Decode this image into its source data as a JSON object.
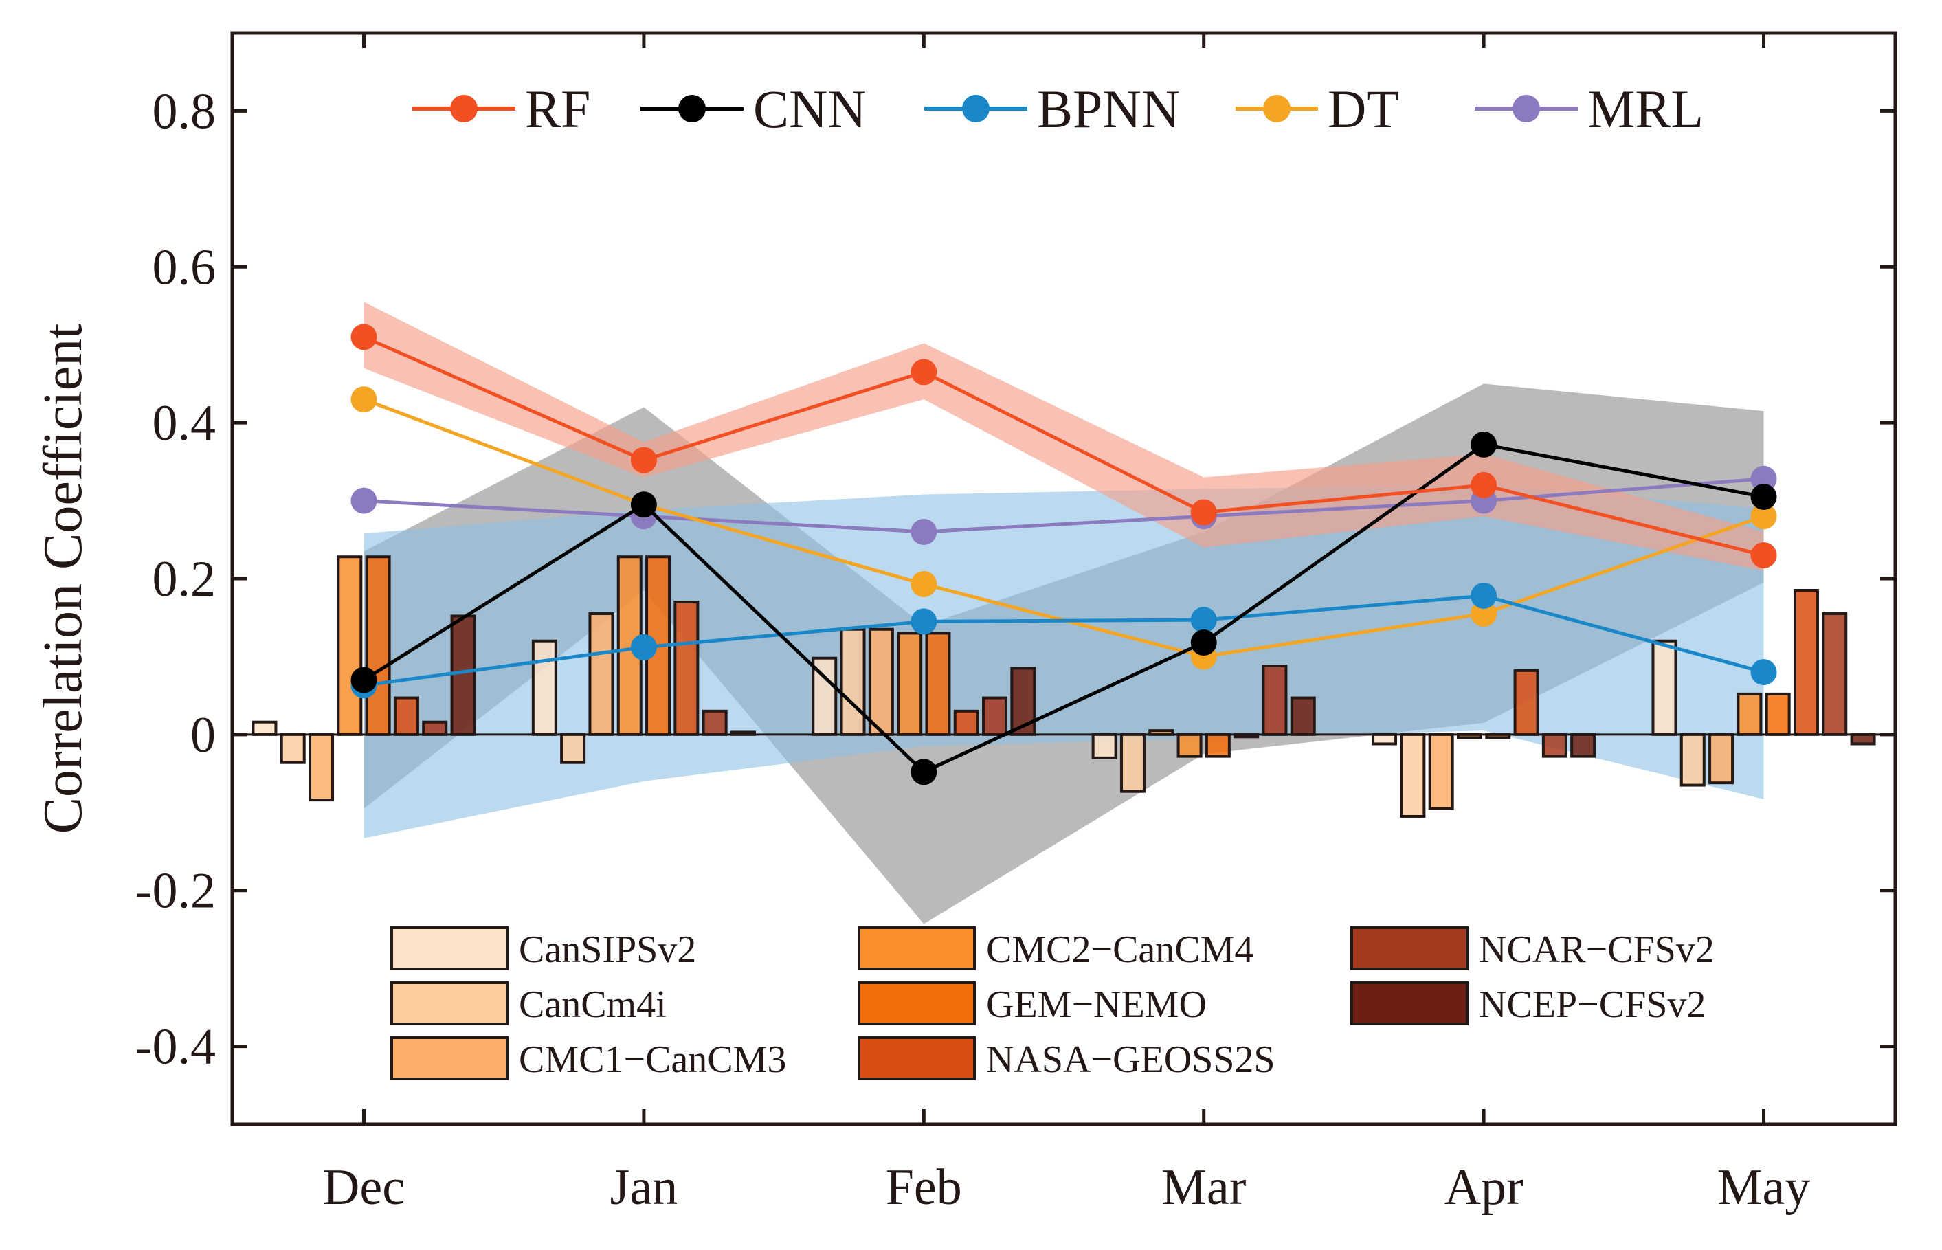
{
  "chart_data": {
    "type": "bar+line",
    "ylabel": "Correlation Coefficient",
    "xlabel": "",
    "ylim": [
      -0.5,
      0.9
    ],
    "yticks": [
      -0.4,
      -0.2,
      0,
      0.2,
      0.4,
      0.6,
      0.8
    ],
    "ytick_labels": [
      "-0.4",
      "-0.2",
      "0",
      "0.2",
      "0.4",
      "0.6",
      "0.8"
    ],
    "categories": [
      "Dec",
      "Jan",
      "Feb",
      "Mar",
      "Apr",
      "May"
    ],
    "x_range": [
      -0.47,
      5.47
    ],
    "bar_series": [
      {
        "name": "CanSIPSv2",
        "color": "#FDE3C8",
        "values": [
          0.016,
          0.12,
          0.098,
          -0.03,
          -0.012,
          0.12
        ]
      },
      {
        "name": "CanCm4i",
        "color": "#FDCDA0",
        "values": [
          -0.036,
          -0.036,
          0.135,
          -0.073,
          -0.105,
          -0.065
        ]
      },
      {
        "name": "CMC1-CanCM3",
        "color": "#FDAE6B",
        "values": [
          -0.084,
          0.155,
          0.135,
          0.005,
          -0.095,
          -0.062
        ]
      },
      {
        "name": "CMC2-CanCM4",
        "color": "#F98E2D",
        "values": [
          0.228,
          0.228,
          0.13,
          -0.028,
          -0.004,
          0.052
        ]
      },
      {
        "name": "GEM-NEMO",
        "color": "#F36C0A",
        "values": [
          0.228,
          0.228,
          0.13,
          -0.028,
          -0.004,
          0.052
        ]
      },
      {
        "name": "NASA-GEOSS2S",
        "color": "#D94F12",
        "values": [
          0.047,
          0.17,
          0.03,
          -0.003,
          0.082,
          0.185
        ]
      },
      {
        "name": "NCAR-CFSv2",
        "color": "#A63A1F",
        "values": [
          0.016,
          0.03,
          0.047,
          0.088,
          -0.028,
          0.155
        ]
      },
      {
        "name": "NCEP-CFSv2",
        "color": "#6D2011",
        "values": [
          0.152,
          0.003,
          0.085,
          0.047,
          -0.028,
          -0.012
        ]
      }
    ],
    "line_series": [
      {
        "name": "RF",
        "color": "#F25022",
        "values": [
          0.51,
          0.352,
          0.465,
          0.285,
          0.32,
          0.23
        ],
        "band_lower": [
          0.47,
          0.33,
          0.43,
          0.24,
          0.28,
          0.21
        ],
        "band_upper": [
          0.555,
          0.375,
          0.502,
          0.33,
          0.36,
          0.26
        ],
        "band_color": "#F4A08C"
      },
      {
        "name": "CNN",
        "color": "#000000",
        "values": [
          0.07,
          0.295,
          -0.048,
          0.118,
          0.372,
          0.305
        ],
        "band_lower": [
          -0.095,
          0.185,
          -0.243,
          -0.025,
          0.015,
          0.195
        ],
        "band_upper": [
          0.235,
          0.42,
          0.14,
          0.26,
          0.45,
          0.415
        ],
        "band_color": "#8C8C8C"
      },
      {
        "name": "BPNN",
        "color": "#1A87C9",
        "values": [
          0.063,
          0.112,
          0.145,
          0.147,
          0.178,
          0.08
        ],
        "band_lower": [
          -0.133,
          -0.06,
          -0.015,
          -0.005,
          0.005,
          -0.083
        ],
        "band_upper": [
          0.258,
          0.288,
          0.308,
          0.315,
          0.32,
          0.29
        ],
        "band_color": "#8EC1E6"
      },
      {
        "name": "DT",
        "color": "#F4A524",
        "values": [
          0.43,
          0.295,
          0.193,
          0.1,
          0.155,
          0.28
        ]
      },
      {
        "name": "MRL",
        "color": "#8C7AC0",
        "values": [
          0.3,
          0.28,
          0.26,
          0.28,
          0.3,
          0.328
        ]
      }
    ]
  }
}
